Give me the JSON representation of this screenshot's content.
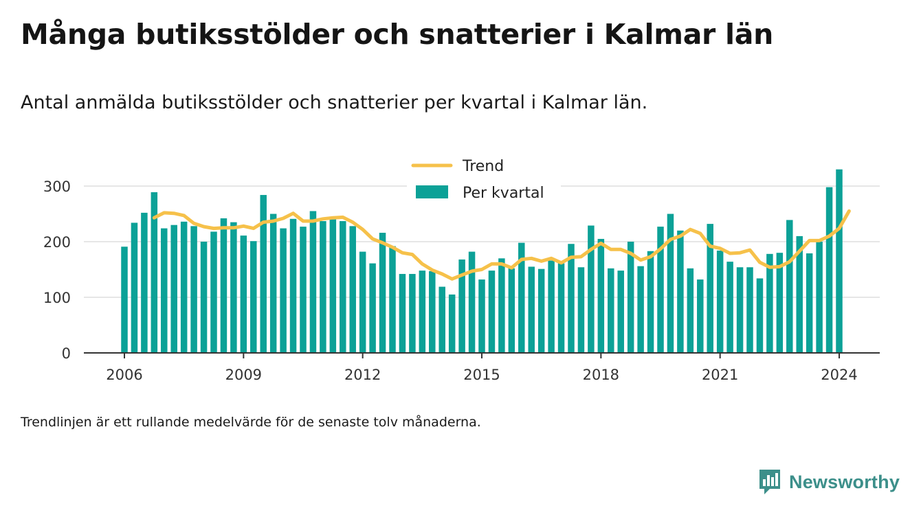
{
  "title": "Många butiksstölder och snatterier i Kalmar län",
  "subtitle": "Antal anmälda butiksstölder och snatterier per kvartal i Kalmar län.",
  "note": "Trendlinjen är ett rullande medelvärde för de senaste tolv månaderna.",
  "brand": {
    "name": "Newsworthy",
    "icon": "newsworthy-logo-icon"
  },
  "colors": {
    "bar": "#0ca197",
    "trend": "#f6c14a",
    "brand": "#3c8f8a",
    "grid": "#dddddd",
    "axis": "#333333"
  },
  "chart_data": {
    "type": "bar",
    "x_start": 2006,
    "x_ticks": [
      2006,
      2009,
      2012,
      2015,
      2018,
      2021,
      2024
    ],
    "y_ticks": [
      0,
      100,
      200,
      300
    ],
    "ylim": [
      0,
      330
    ],
    "grid": true,
    "legend_position": "top-center",
    "series": [
      {
        "name": "Per kvartal",
        "type": "bar",
        "values": [
          191,
          234,
          252,
          289,
          224,
          230,
          236,
          228,
          200,
          218,
          242,
          235,
          211,
          201,
          284,
          250,
          224,
          241,
          227,
          255,
          237,
          240,
          237,
          228,
          182,
          161,
          216,
          192,
          142,
          142,
          148,
          147,
          119,
          105,
          168,
          182,
          132,
          148,
          170,
          152,
          198,
          155,
          151,
          166,
          161,
          196,
          154,
          229,
          205,
          152,
          148,
          200,
          156,
          183,
          227,
          250,
          220,
          152,
          132,
          232,
          184,
          164,
          154,
          154,
          134,
          178,
          180,
          239,
          210,
          179,
          200,
          298,
          330
        ]
      },
      {
        "name": "Trend",
        "type": "line",
        "values": [
          243,
          252,
          251,
          247,
          233,
          227,
          224,
          225,
          225,
          228,
          224,
          235,
          237,
          242,
          251,
          237,
          237,
          241,
          243,
          244,
          235,
          222,
          205,
          198,
          190,
          180,
          177,
          160,
          149,
          142,
          133,
          140,
          147,
          150,
          160,
          160,
          153,
          168,
          170,
          165,
          170,
          162,
          172,
          173,
          186,
          197,
          186,
          186,
          179,
          167,
          173,
          187,
          204,
          210,
          222,
          215,
          192,
          188,
          179,
          180,
          185,
          163,
          154,
          155,
          164,
          183,
          202,
          202,
          210,
          224,
          255
        ]
      }
    ]
  }
}
